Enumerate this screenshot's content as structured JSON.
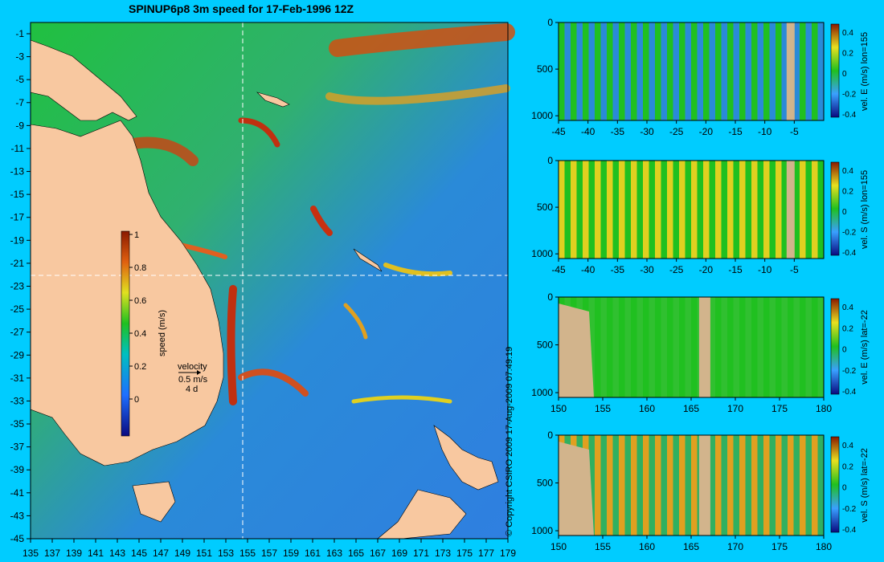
{
  "title": "SPINUP6p8 3m speed for 17-Feb-1996 12Z",
  "copyright": "© Copyright CSIRO 2009  17-Aug-2009 07:49:19",
  "colors": {
    "background": "#00ccff",
    "land": "#f8c8a0",
    "section_land": "#d2b48c"
  },
  "map": {
    "lon_ticks": [
      "135",
      "137",
      "139",
      "141",
      "143",
      "145",
      "147",
      "149",
      "151",
      "153",
      "155",
      "157",
      "159",
      "161",
      "163",
      "165",
      "167",
      "169",
      "171",
      "173",
      "175",
      "177",
      "179"
    ],
    "lat_ticks": [
      "-1",
      "-3",
      "-5",
      "-7",
      "-9",
      "-11",
      "-13",
      "-15",
      "-17",
      "-19",
      "-21",
      "-23",
      "-25",
      "-27",
      "-29",
      "-31",
      "-33",
      "-35",
      "-37",
      "-39",
      "-41",
      "-43",
      "-45"
    ],
    "colorbar": {
      "label": "speed (m/s)",
      "ticks": [
        "1",
        "0.8",
        "0.6",
        "0.4",
        "0.2",
        "0"
      ]
    },
    "velocity_key": {
      "title": "velocity",
      "scale": "0.5 m/s",
      "duration": "4 d"
    },
    "crosshair": {
      "lon": 155,
      "lat": -22
    }
  },
  "sections": [
    {
      "label": "vel. E (m/s) lon=155",
      "x_ticks": [
        "-45",
        "-40",
        "-35",
        "-30",
        "-25",
        "-20",
        "-15",
        "-10",
        "-5"
      ],
      "y_ticks": [
        "0",
        "500",
        "1000"
      ],
      "cb_ticks": [
        "0.4",
        "0.2",
        "0",
        "-0.2",
        "-0.4"
      ]
    },
    {
      "label": "vel. S (m/s) lon=155",
      "x_ticks": [
        "-45",
        "-40",
        "-35",
        "-30",
        "-25",
        "-20",
        "-15",
        "-10",
        "-5"
      ],
      "y_ticks": [
        "0",
        "500",
        "1000"
      ],
      "cb_ticks": [
        "0.4",
        "0.2",
        "0",
        "-0.2",
        "-0.4"
      ]
    },
    {
      "label": "vel. E (m/s) lat=-22",
      "x_ticks": [
        "150",
        "155",
        "160",
        "165",
        "170",
        "175",
        "180"
      ],
      "y_ticks": [
        "0",
        "500",
        "1000"
      ],
      "cb_ticks": [
        "0.4",
        "0.2",
        "0",
        "-0.2",
        "-0.4"
      ]
    },
    {
      "label": "vel. S (m/s) lat=-22",
      "x_ticks": [
        "150",
        "155",
        "160",
        "165",
        "170",
        "175",
        "180"
      ],
      "y_ticks": [
        "0",
        "500",
        "1000"
      ],
      "cb_ticks": [
        "0.4",
        "0.2",
        "0",
        "-0.2",
        "-0.4"
      ]
    }
  ]
}
